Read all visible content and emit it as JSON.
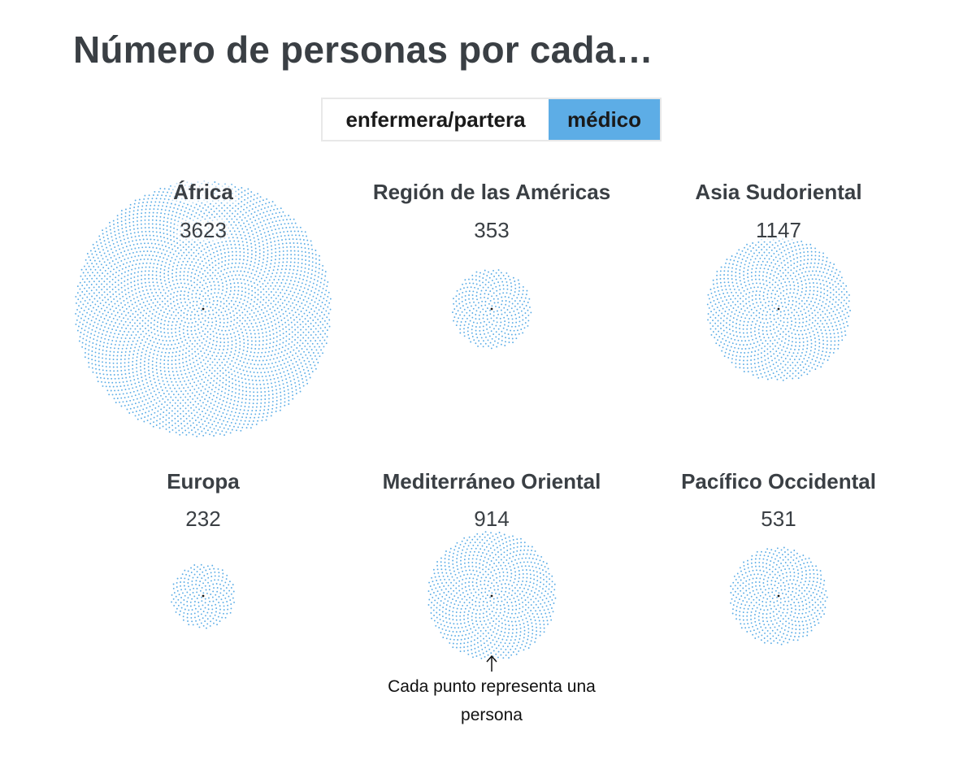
{
  "title": "Número de personas por cada…",
  "toggle": {
    "options": [
      "enfermera/partera",
      "médico"
    ],
    "selected": "médico"
  },
  "colors": {
    "dot": "#5dade6",
    "center": "#1a1a1a",
    "selected": "#5dade6"
  },
  "chart_data": {
    "type": "dot-cluster",
    "title": "Número de personas por cada…",
    "unit": "personas por médico",
    "categories": [
      "África",
      "Región de las Américas",
      "Asia Sudoriental",
      "Europa",
      "Mediterráneo Oriental",
      "Pacífico Occidental"
    ],
    "values": [
      3623,
      353,
      1147,
      232,
      914,
      531
    ],
    "annotation": {
      "line1": "Cada punto representa una",
      "line2": "persona"
    }
  }
}
